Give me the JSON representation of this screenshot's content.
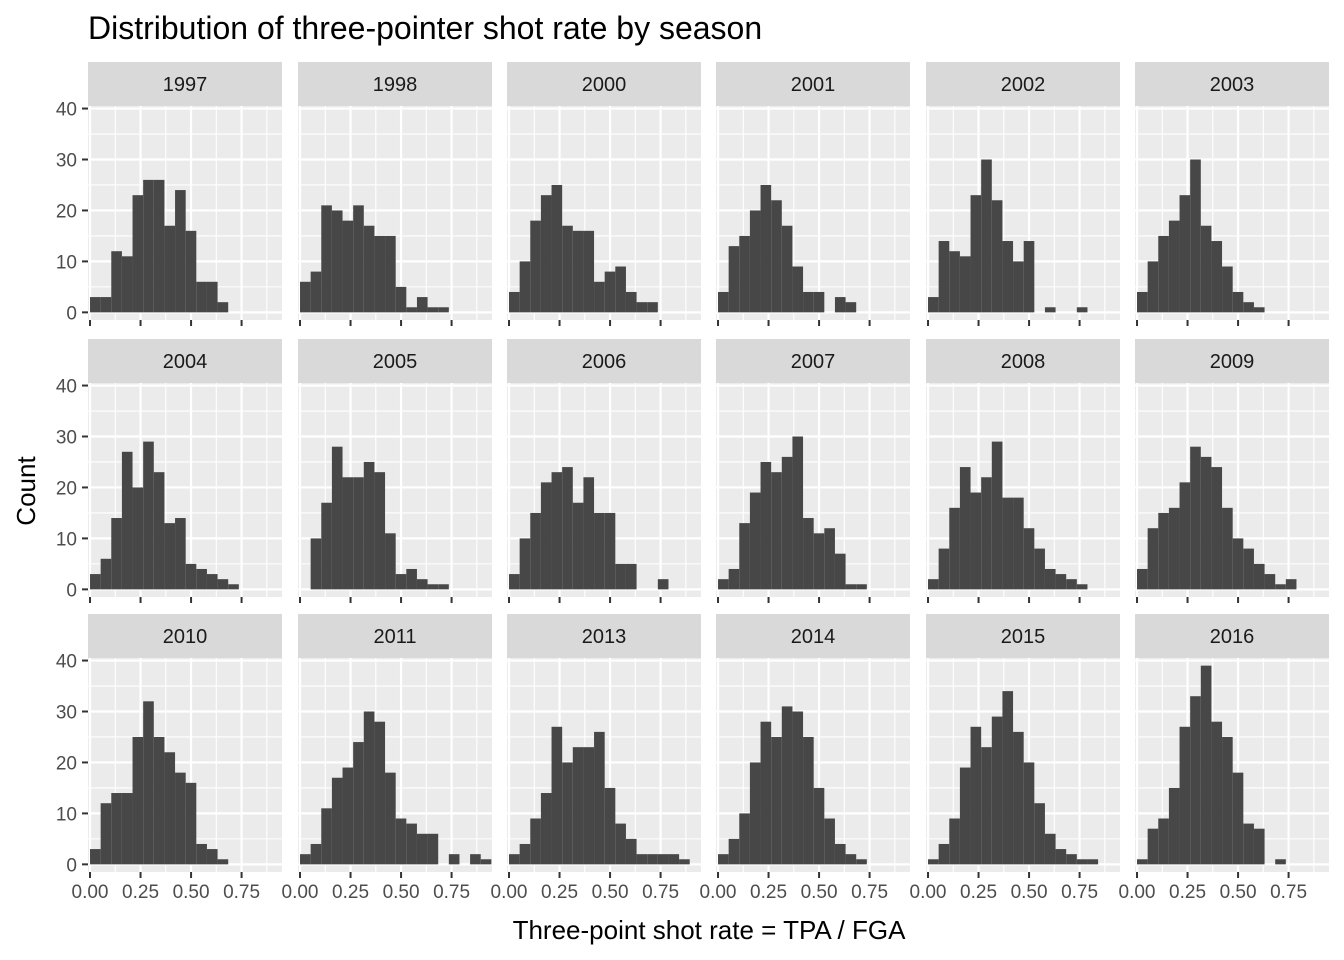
{
  "chart_data": {
    "type": "bar",
    "title": "Distribution of three-pointer shot rate by season",
    "xlabel": "Three-point shot rate = TPA / FGA",
    "ylabel": "Count",
    "xlim": [
      -0.01,
      0.95
    ],
    "ylim": [
      -1.5,
      40.5
    ],
    "x_ticks": [
      0.0,
      0.25,
      0.5,
      0.75
    ],
    "x_tick_labels": [
      "0.00",
      "0.25",
      "0.50",
      "0.75"
    ],
    "y_ticks": [
      0,
      10,
      20,
      30,
      40
    ],
    "y_tick_labels": [
      "0",
      "10",
      "20",
      "30",
      "40"
    ],
    "bin_width": 0.0526,
    "bin_start": 0.0,
    "layout": {
      "columns": 6,
      "rows": 3
    },
    "grid": true,
    "facets": [
      {
        "label": "1997",
        "counts": [
          3,
          3,
          12,
          11,
          23,
          26,
          26,
          17,
          24,
          16,
          6,
          6,
          2,
          0,
          0,
          0,
          0,
          0
        ]
      },
      {
        "label": "1998",
        "counts": [
          6,
          8,
          21,
          20,
          18,
          21,
          17,
          15,
          15,
          5,
          1,
          3,
          1,
          1,
          0,
          0,
          0,
          0
        ]
      },
      {
        "label": "2000",
        "counts": [
          4,
          10,
          18,
          23,
          25,
          17,
          16,
          16,
          6,
          8,
          9,
          4,
          2,
          2,
          0,
          0,
          0,
          0
        ]
      },
      {
        "label": "2001",
        "counts": [
          4,
          13,
          15,
          20,
          25,
          22,
          17,
          9,
          4,
          4,
          0,
          3,
          2,
          0,
          0,
          0,
          0,
          0
        ]
      },
      {
        "label": "2002",
        "counts": [
          3,
          14,
          12,
          11,
          23,
          30,
          22,
          14,
          10,
          14,
          0,
          1,
          0,
          0,
          1,
          0,
          0,
          0
        ]
      },
      {
        "label": "2003",
        "counts": [
          4,
          10,
          15,
          18,
          23,
          30,
          17,
          14,
          9,
          4,
          2,
          1,
          0,
          0,
          0,
          0,
          0,
          0
        ]
      },
      {
        "label": "2004",
        "counts": [
          3,
          6,
          14,
          27,
          20,
          29,
          23,
          13,
          14,
          5,
          4,
          3,
          2,
          1,
          0,
          0,
          0,
          0
        ]
      },
      {
        "label": "2005",
        "counts": [
          0,
          10,
          17,
          28,
          22,
          22,
          25,
          23,
          11,
          3,
          4,
          2,
          1,
          1,
          0,
          0,
          0,
          0
        ]
      },
      {
        "label": "2006",
        "counts": [
          3,
          10,
          15,
          21,
          23,
          24,
          17,
          22,
          15,
          15,
          5,
          5,
          0,
          0,
          2,
          0,
          0,
          0
        ]
      },
      {
        "label": "2007",
        "counts": [
          2,
          4,
          13,
          19,
          25,
          23,
          26,
          30,
          14,
          11,
          12,
          7,
          1,
          1,
          0,
          0,
          0,
          0
        ]
      },
      {
        "label": "2008",
        "counts": [
          2,
          8,
          16,
          24,
          19,
          22,
          29,
          18,
          18,
          12,
          8,
          4,
          3,
          2,
          1,
          0,
          0,
          0
        ]
      },
      {
        "label": "2009",
        "counts": [
          4,
          12,
          15,
          16,
          21,
          28,
          26,
          24,
          16,
          10,
          8,
          5,
          3,
          1,
          2,
          0,
          0,
          0
        ]
      },
      {
        "label": "2010",
        "counts": [
          3,
          12,
          14,
          14,
          25,
          32,
          25,
          22,
          18,
          16,
          4,
          3,
          1,
          0,
          0,
          0,
          0,
          0
        ]
      },
      {
        "label": "2011",
        "counts": [
          2,
          4,
          11,
          17,
          19,
          24,
          30,
          28,
          18,
          9,
          8,
          6,
          6,
          0,
          2,
          0,
          2,
          1
        ]
      },
      {
        "label": "2013",
        "counts": [
          2,
          4,
          9,
          14,
          27,
          20,
          23,
          23,
          26,
          15,
          8,
          5,
          2,
          2,
          2,
          2,
          1,
          0
        ]
      },
      {
        "label": "2014",
        "counts": [
          2,
          5,
          10,
          20,
          28,
          25,
          31,
          30,
          25,
          15,
          9,
          4,
          2,
          1,
          0,
          0,
          0,
          0
        ]
      },
      {
        "label": "2015",
        "counts": [
          1,
          4,
          9,
          19,
          27,
          23,
          29,
          34,
          26,
          20,
          12,
          6,
          3,
          2,
          1,
          1,
          0,
          0
        ]
      },
      {
        "label": "2016",
        "counts": [
          1,
          7,
          9,
          15,
          27,
          33,
          39,
          28,
          25,
          18,
          8,
          7,
          0,
          1,
          0,
          0,
          0,
          0
        ]
      }
    ]
  }
}
